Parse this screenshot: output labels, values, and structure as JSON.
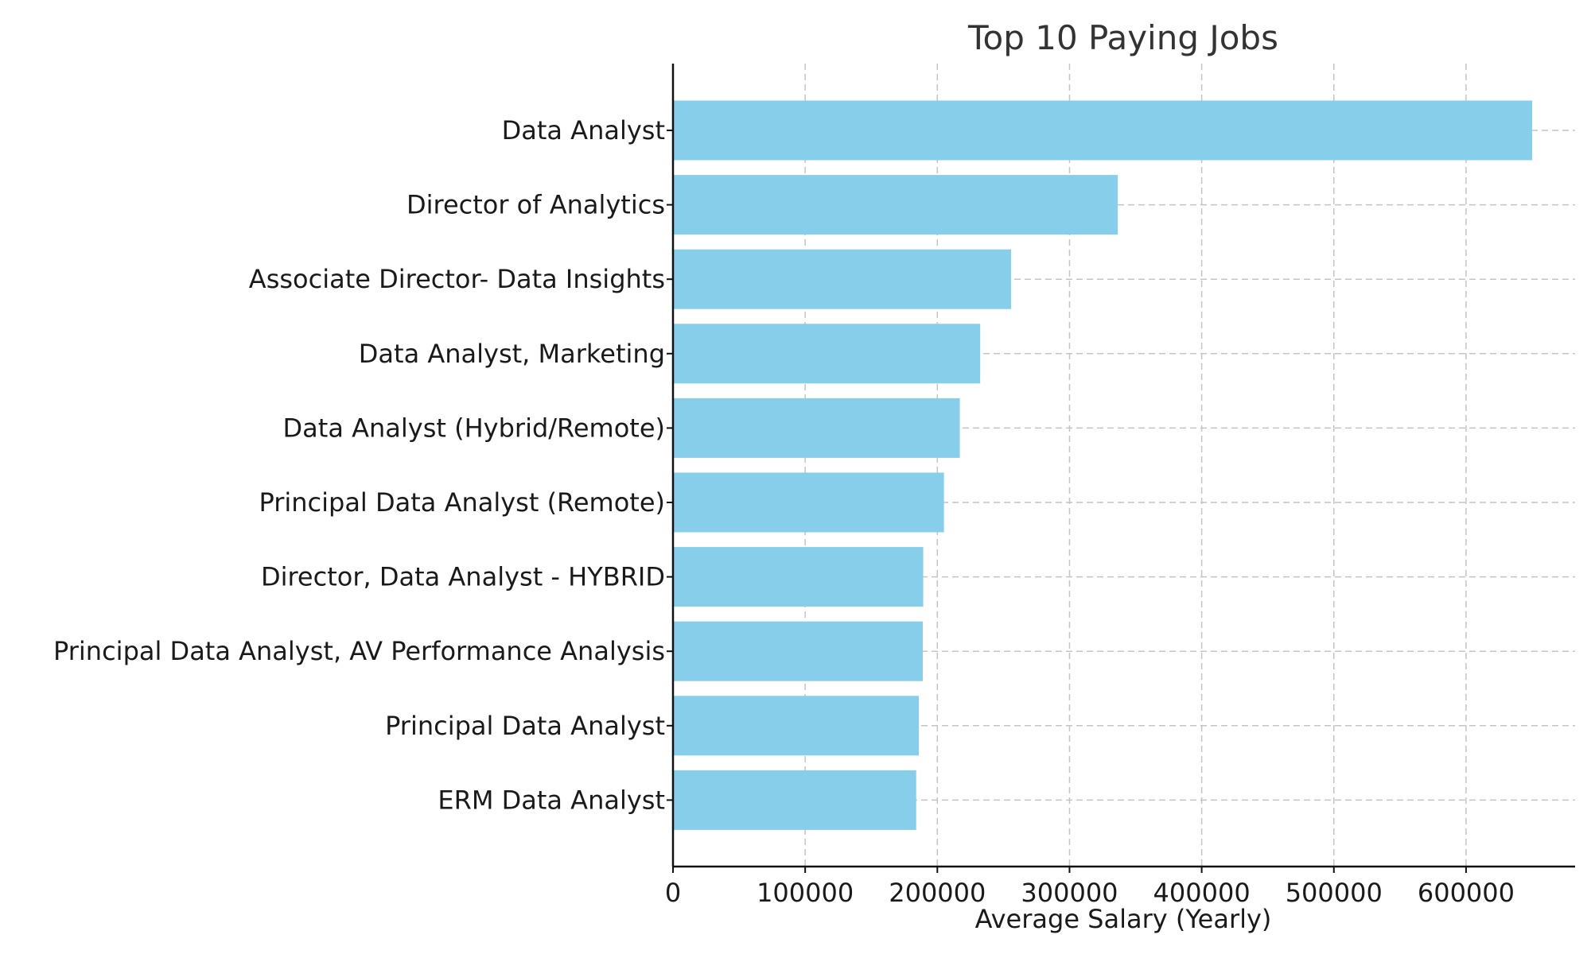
{
  "chart_data": {
    "type": "bar",
    "orientation": "horizontal",
    "title": "Top 10 Paying Jobs",
    "xlabel": "Average Salary (Yearly)",
    "ylabel": "",
    "categories": [
      "Data Analyst",
      "Director of Analytics",
      "Associate Director- Data Insights",
      "Data Analyst, Marketing",
      "Data Analyst (Hybrid/Remote)",
      "Principal Data Analyst (Remote)",
      "Director, Data Analyst - HYBRID",
      "Principal Data Analyst, AV Performance Analysis",
      "Principal Data Analyst",
      "ERM Data Analyst"
    ],
    "values": [
      650000,
      336500,
      255829.5,
      232423,
      217000,
      205000,
      189309,
      189000,
      186000,
      184000
    ],
    "xlim": [
      0,
      682500
    ],
    "xticks": [
      0,
      100000,
      200000,
      300000,
      400000,
      500000,
      600000
    ],
    "xtick_labels": [
      "0",
      "100000",
      "200000",
      "300000",
      "400000",
      "500000",
      "600000"
    ],
    "grid": true,
    "bar_color": "#87ceeb"
  }
}
